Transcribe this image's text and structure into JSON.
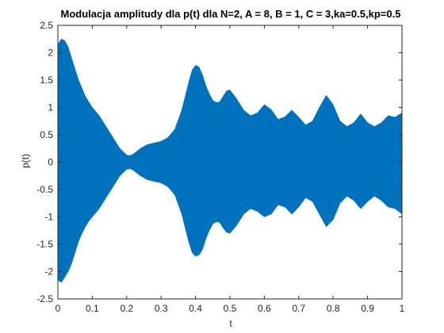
{
  "chart_data": {
    "type": "area",
    "title": "Modulacja amplitudy dla p(t) dla N=2, A = 8, B = 1, C = 3,ka=0.5,kp=0.5",
    "xlabel": "t",
    "ylabel": "p(t)",
    "xlim": [
      0,
      1
    ],
    "ylim": [
      -2.5,
      2.5
    ],
    "xticks": [
      0,
      0.1,
      0.2,
      0.3,
      0.4,
      0.5,
      0.6,
      0.7,
      0.8,
      0.9,
      1
    ],
    "xtick_labels": [
      "0",
      "0.1",
      "0.2",
      "0.3",
      "0.4",
      "0.5",
      "0.6",
      "0.7",
      "0.8",
      "0.9",
      "1"
    ],
    "yticks": [
      -2.5,
      -2,
      -1.5,
      -1,
      -0.5,
      0,
      0.5,
      1,
      1.5,
      2,
      2.5
    ],
    "ytick_labels": [
      "-2.5",
      "-2",
      "-1.5",
      "-1",
      "-0.5",
      "0",
      "0.5",
      "1",
      "1.5",
      "2",
      "2.5"
    ],
    "grid": false,
    "series": [
      {
        "color": "#0072bd",
        "x": [
          0,
          0.01,
          0.02,
          0.03,
          0.04,
          0.05,
          0.06,
          0.07,
          0.08,
          0.09,
          0.1,
          0.12,
          0.14,
          0.16,
          0.18,
          0.2,
          0.21,
          0.22,
          0.24,
          0.26,
          0.28,
          0.3,
          0.32,
          0.34,
          0.36,
          0.38,
          0.39,
          0.4,
          0.41,
          0.42,
          0.43,
          0.44,
          0.45,
          0.46,
          0.47,
          0.48,
          0.49,
          0.5,
          0.52,
          0.54,
          0.56,
          0.58,
          0.6,
          0.62,
          0.64,
          0.66,
          0.68,
          0.7,
          0.72,
          0.74,
          0.76,
          0.78,
          0.8,
          0.82,
          0.84,
          0.86,
          0.88,
          0.9,
          0.92,
          0.94,
          0.96,
          0.98,
          1.0
        ],
        "y_upper": [
          2.15,
          2.25,
          2.22,
          2.1,
          1.9,
          1.7,
          1.5,
          1.35,
          1.2,
          1.1,
          1.0,
          0.85,
          0.65,
          0.45,
          0.25,
          0.13,
          0.12,
          0.15,
          0.25,
          0.32,
          0.35,
          0.38,
          0.45,
          0.6,
          0.95,
          1.45,
          1.68,
          1.77,
          1.74,
          1.6,
          1.4,
          1.25,
          1.13,
          1.09,
          1.1,
          1.2,
          1.3,
          1.32,
          1.15,
          0.95,
          0.85,
          0.9,
          1.05,
          0.96,
          0.78,
          0.83,
          0.95,
          0.82,
          0.68,
          0.75,
          1.0,
          1.22,
          1.05,
          0.75,
          0.65,
          0.72,
          0.88,
          0.72,
          0.65,
          0.72,
          0.85,
          0.82,
          0.9
        ],
        "y_lower": [
          -2.15,
          -2.2,
          -2.1,
          -2.0,
          -1.85,
          -1.65,
          -1.45,
          -1.3,
          -1.18,
          -1.08,
          -1.0,
          -0.85,
          -0.65,
          -0.45,
          -0.25,
          -0.13,
          -0.12,
          -0.15,
          -0.25,
          -0.32,
          -0.35,
          -0.38,
          -0.45,
          -0.6,
          -0.95,
          -1.45,
          -1.65,
          -1.72,
          -1.7,
          -1.6,
          -1.4,
          -1.25,
          -1.13,
          -1.09,
          -1.1,
          -1.2,
          -1.28,
          -1.3,
          -1.15,
          -0.95,
          -0.85,
          -0.9,
          -1.0,
          -0.95,
          -0.78,
          -0.82,
          -0.95,
          -0.82,
          -0.65,
          -0.72,
          -0.95,
          -1.18,
          -1.05,
          -0.75,
          -0.62,
          -0.7,
          -0.85,
          -0.72,
          -0.62,
          -0.7,
          -0.82,
          -0.85,
          -0.95
        ]
      }
    ]
  }
}
